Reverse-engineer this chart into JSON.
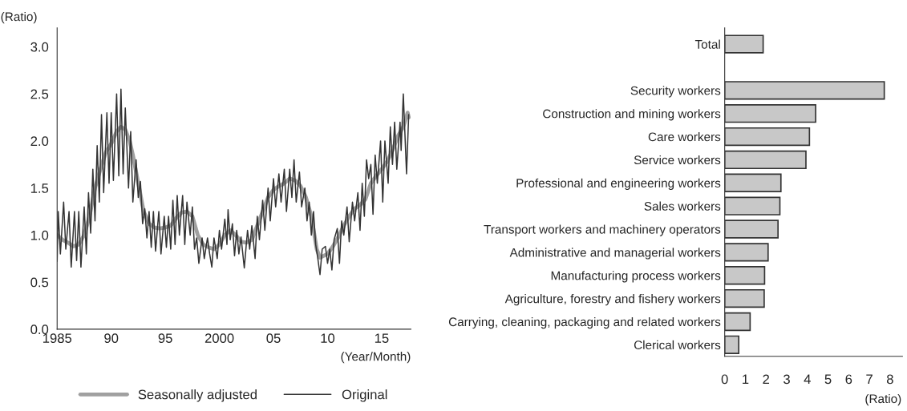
{
  "chart_data": [
    {
      "type": "line",
      "ylabel": "(Ratio)",
      "xlabel": "(Year/Month)",
      "xlim": [
        1985,
        2017.7
      ],
      "ylim": [
        0,
        3.2
      ],
      "xticks": [
        {
          "value": 1985,
          "label": "1985"
        },
        {
          "value": 1990,
          "label": "90"
        },
        {
          "value": 1995,
          "label": "95"
        },
        {
          "value": 2000,
          "label": "2000"
        },
        {
          "value": 2005,
          "label": "05"
        },
        {
          "value": 2010,
          "label": "10"
        },
        {
          "value": 2015,
          "label": "15"
        }
      ],
      "yticks": [
        {
          "value": 0,
          "label": "0.0"
        },
        {
          "value": 0.5,
          "label": "0.5"
        },
        {
          "value": 1,
          "label": "1.0"
        },
        {
          "value": 1.5,
          "label": "1.5"
        },
        {
          "value": 2,
          "label": "2.0"
        },
        {
          "value": 2.5,
          "label": "2.5"
        },
        {
          "value": 3,
          "label": "3.0"
        }
      ],
      "grid": false,
      "legend": "bottom",
      "line_style": "solid",
      "marker": "none",
      "series": [
        {
          "name": "Seasonally adjusted",
          "color": "#a0a0a0",
          "x": [
            1985.0,
            1985.5,
            1986.0,
            1986.5,
            1987.0,
            1987.5,
            1988.0,
            1988.5,
            1989.0,
            1989.5,
            1990.0,
            1990.5,
            1990.9,
            1991.3,
            1991.7,
            1992.0,
            1992.5,
            1993.0,
            1993.5,
            1994.0,
            1994.5,
            1995.0,
            1995.5,
            1996.0,
            1996.5,
            1997.0,
            1997.5,
            1998.0,
            1998.5,
            1999.0,
            1999.5,
            2000.0,
            2000.5,
            2001.0,
            2001.5,
            2002.0,
            2002.5,
            2003.0,
            2003.5,
            2004.0,
            2004.5,
            2005.0,
            2005.5,
            2006.0,
            2006.5,
            2007.0,
            2007.5,
            2008.0,
            2008.5,
            2009.0,
            2009.3,
            2010.0,
            2010.5,
            2011.0,
            2011.5,
            2012.0,
            2012.5,
            2013.0,
            2013.5,
            2014.0,
            2014.5,
            2015.0,
            2015.5,
            2016.0,
            2016.5,
            2017.0,
            2017.4,
            2017.5
          ],
          "values": [
            1.0,
            0.95,
            0.92,
            0.88,
            0.9,
            1.0,
            1.2,
            1.5,
            1.7,
            1.88,
            1.97,
            2.1,
            2.15,
            2.12,
            2.0,
            1.85,
            1.55,
            1.25,
            1.12,
            1.08,
            1.07,
            1.08,
            1.1,
            1.18,
            1.24,
            1.25,
            1.2,
            1.0,
            0.9,
            0.87,
            0.85,
            0.9,
            1.0,
            1.05,
            1.0,
            0.93,
            0.92,
            0.95,
            1.1,
            1.25,
            1.4,
            1.48,
            1.52,
            1.55,
            1.6,
            1.58,
            1.52,
            1.4,
            1.2,
            0.85,
            0.76,
            0.8,
            0.88,
            0.98,
            1.1,
            1.2,
            1.28,
            1.32,
            1.38,
            1.55,
            1.63,
            1.7,
            1.78,
            1.9,
            2.05,
            2.15,
            2.3,
            2.25
          ]
        },
        {
          "name": "Original",
          "color": "#333333",
          "x": [
            1985.0,
            1985.1,
            1985.3,
            1985.6,
            1985.8,
            1986.1,
            1986.3,
            1986.6,
            1986.8,
            1987.0,
            1987.2,
            1987.5,
            1987.7,
            1987.9,
            1988.1,
            1988.3,
            1988.5,
            1988.7,
            1988.9,
            1989.1,
            1989.3,
            1989.6,
            1989.8,
            1990.0,
            1990.2,
            1990.5,
            1990.7,
            1990.9,
            1991.1,
            1991.3,
            1991.6,
            1991.8,
            1992.0,
            1992.3,
            1992.5,
            1992.7,
            1992.9,
            1993.1,
            1993.3,
            1993.5,
            1993.7,
            1993.9,
            1994.1,
            1994.4,
            1994.6,
            1994.9,
            1995.1,
            1995.3,
            1995.5,
            1995.7,
            1995.9,
            1996.1,
            1996.3,
            1996.6,
            1996.8,
            1997.0,
            1997.3,
            1997.5,
            1997.7,
            1997.9,
            1998.1,
            1998.4,
            1998.6,
            1998.9,
            1999.1,
            1999.3,
            1999.5,
            1999.8,
            2000.0,
            2000.2,
            2000.5,
            2000.7,
            2000.8,
            2001.0,
            2001.2,
            2001.4,
            2001.6,
            2001.8,
            2002.0,
            2002.3,
            2002.6,
            2002.8,
            2003.0,
            2003.3,
            2003.5,
            2003.7,
            2004.0,
            2004.2,
            2004.5,
            2004.7,
            2005.0,
            2005.2,
            2005.5,
            2005.7,
            2006.0,
            2006.2,
            2006.5,
            2006.7,
            2006.9,
            2007.1,
            2007.4,
            2007.6,
            2007.9,
            2008.1,
            2008.3,
            2008.5,
            2008.7,
            2008.9,
            2009.1,
            2009.3,
            2009.5,
            2009.8,
            2010.0,
            2010.2,
            2010.4,
            2010.6,
            2010.9,
            2011.1,
            2011.3,
            2011.5,
            2011.8,
            2012.0,
            2012.3,
            2012.5,
            2012.8,
            2013.0,
            2013.2,
            2013.4,
            2013.6,
            2013.8,
            2014.0,
            2014.2,
            2014.4,
            2014.6,
            2014.9,
            2015.1,
            2015.3,
            2015.6,
            2015.8,
            2016.0,
            2016.2,
            2016.4,
            2016.7,
            2016.8,
            2017.0,
            2017.3,
            2017.5
          ],
          "values": [
            0.72,
            1.25,
            0.8,
            1.35,
            0.85,
            1.25,
            0.66,
            1.25,
            0.73,
            1.25,
            0.66,
            1.3,
            0.8,
            1.45,
            1.02,
            1.7,
            1.15,
            1.95,
            1.35,
            2.28,
            1.45,
            2.3,
            1.55,
            2.3,
            1.58,
            2.5,
            1.63,
            2.55,
            1.65,
            2.35,
            1.5,
            2.1,
            1.35,
            1.8,
            1.4,
            1.57,
            1.12,
            1.28,
            0.97,
            1.25,
            0.87,
            1.25,
            0.83,
            1.25,
            0.8,
            1.2,
            0.87,
            1.2,
            0.85,
            1.37,
            0.9,
            1.42,
            1.0,
            1.42,
            0.9,
            1.35,
            1.0,
            1.3,
            0.85,
            0.97,
            0.7,
            0.97,
            0.75,
            0.97,
            0.8,
            0.66,
            0.97,
            0.75,
            1.05,
            0.85,
            1.17,
            0.9,
            1.27,
            0.95,
            1.12,
            0.78,
            1.05,
            0.8,
            0.98,
            0.65,
            1.05,
            0.85,
            1.1,
            0.75,
            1.2,
            0.95,
            1.37,
            1.05,
            1.5,
            1.15,
            1.6,
            1.3,
            1.65,
            1.35,
            1.7,
            1.25,
            1.7,
            1.4,
            1.8,
            1.35,
            1.67,
            1.3,
            1.5,
            1.15,
            1.35,
            1.0,
            1.25,
            0.9,
            0.75,
            0.58,
            0.85,
            0.88,
            0.7,
            0.85,
            0.63,
            0.95,
            1.07,
            0.7,
            1.15,
            1.0,
            1.3,
            0.93,
            1.35,
            1.15,
            1.45,
            1.05,
            1.55,
            1.2,
            1.8,
            1.6,
            1.75,
            1.22,
            1.85,
            1.55,
            2.0,
            1.35,
            2.0,
            1.55,
            2.15,
            1.75,
            2.2,
            1.7,
            2.2,
            1.9,
            2.5,
            1.65,
            2.28
          ]
        }
      ]
    },
    {
      "type": "bar",
      "orientation": "horizontal",
      "xlabel": "(Ratio)",
      "xlim": [
        0,
        8.6
      ],
      "xticks": [
        0,
        1,
        2,
        3,
        4,
        5,
        6,
        7,
        8
      ],
      "grid": false,
      "color": "#c8c8c8",
      "categories": [
        "Total",
        null,
        "Security workers",
        "Construction and mining workers",
        "Care workers",
        "Service workers",
        "Professional and engineering workers",
        "Sales workers",
        "Transport workers and machinery operators",
        "Administrative and managerial workers",
        "Manufacturing process workers",
        "Agriculture, forestry and fishery workers",
        "Carrying, cleaning, packaging and related workers",
        "Clerical workers"
      ],
      "values": [
        1.86,
        null,
        7.72,
        4.4,
        4.1,
        3.93,
        2.72,
        2.67,
        2.58,
        2.1,
        1.93,
        1.91,
        1.23,
        0.68
      ]
    }
  ]
}
